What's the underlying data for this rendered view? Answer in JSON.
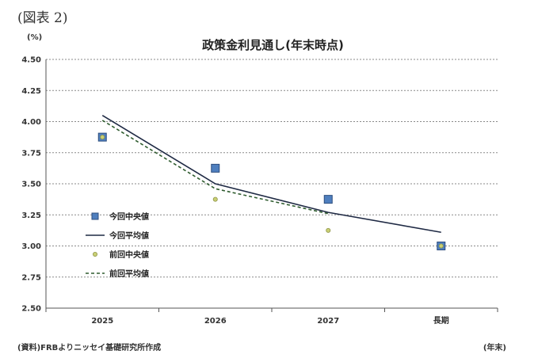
{
  "figure_label": "(図表 2)",
  "unit_label": "(%)",
  "source_note": "(資料)FRBよりニッセイ基礎研究所作成",
  "period_note": "(年末)",
  "colors": {
    "current_median": "#4f7fbe",
    "current_median_edge": "#2f4f7f",
    "current_mean": "#1f2a44",
    "previous_median": "#c9cf73",
    "previous_mean": "#2f5c2f",
    "grid": "#8a8a8a"
  },
  "chart_data": {
    "type": "line",
    "title": "政策金利見通し(年末時点)",
    "categories": [
      "2025",
      "2026",
      "2027",
      "長期"
    ],
    "ylim": [
      2.5,
      4.5
    ],
    "yticks": [
      "4.50",
      "4.25",
      "4.00",
      "3.75",
      "3.50",
      "3.25",
      "3.00",
      "2.75",
      "2.50"
    ],
    "grid": "horizontal dashed",
    "legend_position": "center-left",
    "series": [
      {
        "name": "今回中央値",
        "kind": "marker-square",
        "values": [
          3.875,
          3.625,
          3.375,
          3.0
        ]
      },
      {
        "name": "今回平均値",
        "kind": "line-solid",
        "values": [
          4.05,
          3.5,
          3.27,
          3.11
        ]
      },
      {
        "name": "前回中央値",
        "kind": "marker-dot",
        "values": [
          3.875,
          3.375,
          3.125,
          3.0
        ]
      },
      {
        "name": "前回平均値",
        "kind": "line-dashed",
        "values": [
          4.01,
          3.46,
          3.26,
          null
        ]
      }
    ]
  }
}
